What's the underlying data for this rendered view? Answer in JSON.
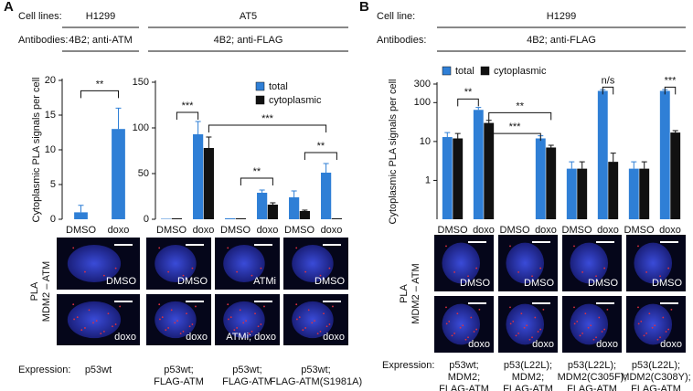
{
  "panel_a": {
    "label": "A",
    "cell_lines_label": "Cell lines:",
    "cell_lines": [
      "H1299",
      "AT5"
    ],
    "antibodies_label": "Antibodies:",
    "antibodies": [
      "4B2; anti-ATM",
      "4B2; anti-FLAG"
    ],
    "image_side_label": [
      "PLA",
      "MDM2 – ATM"
    ],
    "image_labels": [
      [
        "DMSO",
        "doxo"
      ],
      [
        "DMSO",
        "doxo"
      ],
      [
        "ATMi",
        "ATMi; doxo"
      ],
      [
        "DMSO",
        "doxo"
      ]
    ],
    "expression_label": "Expression:",
    "expression": [
      [
        "p53wt"
      ],
      [
        "p53wt;",
        "FLAG-ATM"
      ],
      [
        "p53wt;",
        "FLAG-ATM"
      ],
      [
        "p53wt;",
        "FLAG-ATM(S1981A)"
      ]
    ]
  },
  "panel_b": {
    "label": "B",
    "cell_lines_label": "Cell line:",
    "cell_lines": [
      "H1299"
    ],
    "antibodies_label": "Antibodies:",
    "antibodies": [
      "4B2; anti-FLAG"
    ],
    "image_side_label": [
      "PLA",
      "MDM2 – ATM"
    ],
    "image_labels": [
      [
        "DMSO",
        "doxo"
      ],
      [
        "DMSO",
        "doxo"
      ],
      [
        "DMSO",
        "doxo"
      ],
      [
        "DMSO",
        "doxo"
      ]
    ],
    "expression_label": "Expression:",
    "expression": [
      [
        "p53wt;",
        "MDM2;",
        "FLAG-ATM"
      ],
      [
        "p53(L22L);",
        "MDM2;",
        "FLAG-ATM"
      ],
      [
        "p53(L22L);",
        "MDM2(C305F);",
        "FLAG-ATM"
      ],
      [
        "p53(L22L);",
        "MDM2(C308Y);",
        "FLAG-ATM"
      ]
    ]
  },
  "chart_data": [
    {
      "type": "bar",
      "ylabel": "Cytoplasmic PLA signals per cell",
      "categories": [
        "DMSO",
        "doxo"
      ],
      "series": [
        {
          "color": "#2f7fd6",
          "values": [
            1,
            13
          ],
          "errors": [
            1,
            3
          ]
        }
      ],
      "ylim": [
        0,
        20
      ],
      "yticks": [
        0,
        5,
        10,
        15,
        20
      ],
      "annotations": [
        "**"
      ]
    },
    {
      "type": "bar",
      "categories": [
        "DMSO",
        "doxo",
        "DMSO",
        "doxo",
        "DMSO",
        "doxo"
      ],
      "series": [
        {
          "name": "total",
          "color": "#2f7fd6",
          "values": [
            0.5,
            93,
            1,
            29,
            24,
            51
          ],
          "errors": [
            0,
            14,
            0,
            3,
            7,
            10
          ]
        },
        {
          "name": "cytoplasmic",
          "color": "#111111",
          "values": [
            1,
            78,
            1,
            16,
            9,
            1
          ],
          "errors": [
            0,
            12,
            0,
            2,
            1,
            0
          ]
        }
      ],
      "ylim": [
        0,
        150
      ],
      "yticks": [
        0,
        50,
        100,
        150
      ],
      "annotations": [
        "***",
        "***",
        "**",
        "**"
      ]
    },
    {
      "type": "bar",
      "log": true,
      "ylabel": "Cytoplasmic PLA signals per cell",
      "categories": [
        "DMSO",
        "doxo",
        "DMSO",
        "doxo",
        "DMSO",
        "doxo",
        "DMSO",
        "doxo"
      ],
      "series": [
        {
          "name": "total",
          "color": "#2f7fd6",
          "values": [
            13,
            65,
            null,
            12,
            2,
            200,
            2,
            200
          ],
          "errors": [
            4,
            10,
            null,
            2,
            1,
            15,
            1,
            15
          ]
        },
        {
          "name": "cytoplasmic",
          "color": "#111111",
          "values": [
            12,
            30,
            null,
            7,
            2,
            3,
            2,
            17
          ],
          "errors": [
            4,
            5,
            null,
            1,
            1,
            2,
            1,
            2
          ]
        }
      ],
      "ylim": [
        0.1,
        300
      ],
      "yticks": [
        1,
        10,
        100,
        300
      ],
      "annotations": [
        "**",
        "**",
        "***",
        "n/s",
        "***"
      ]
    }
  ]
}
